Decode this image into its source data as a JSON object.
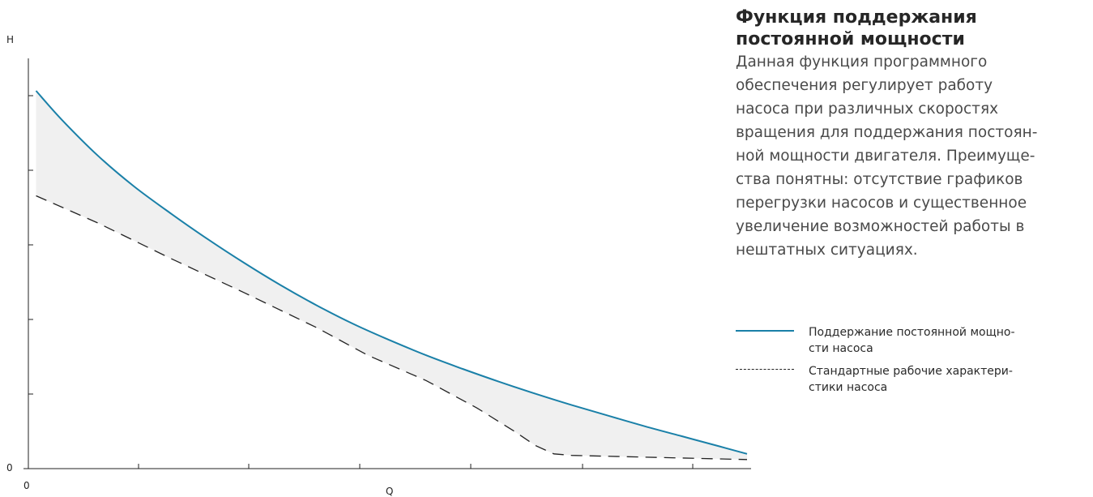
{
  "chart_data": {
    "type": "line",
    "title": "",
    "xlabel": "Q",
    "ylabel": "H",
    "origin_label": "0",
    "x_origin_label": "0",
    "xlim": [
      0,
      100
    ],
    "ylim": [
      0,
      100
    ],
    "grid": false,
    "fill_between": true,
    "fill_color": "#f0f0f0",
    "series": [
      {
        "name": "Поддержание постоянной мощности насоса",
        "style": "solid",
        "color": "#1a80a8",
        "x": [
          1.5,
          5,
          10,
          15,
          20,
          25,
          30,
          35,
          40,
          45,
          50,
          55,
          60,
          65,
          70,
          75,
          80,
          85,
          90,
          95,
          99
        ],
        "y": [
          100,
          92.4,
          82.8,
          74.6,
          67.5,
          60.8,
          54.5,
          48.6,
          43.2,
          38.3,
          34,
          30,
          26.4,
          23,
          19.8,
          16.8,
          14,
          11.2,
          8.6,
          6,
          3.9
        ]
      },
      {
        "name": "Стандартные рабочие характеристики насоса",
        "style": "dashed",
        "color": "#222222",
        "x": [
          1.5,
          10,
          20,
          30,
          40,
          47,
          55,
          62,
          67,
          70,
          72.5,
          75,
          99
        ],
        "y": [
          72.2,
          65,
          55.6,
          46.6,
          37.3,
          30,
          23.3,
          16,
          10,
          6.1,
          3.9,
          3.5,
          2.4
        ]
      }
    ]
  },
  "side": {
    "heading_line1": "Функция поддержания",
    "heading_line2": "постоянной мощности",
    "body_lines": [
      "Данная функция программного",
      "обеспечения регулирует работу",
      "насоса при различных скоростях",
      "вращения для поддержания постоян-",
      "ной мощности двигателя. Преимуще-",
      "ства понятны: отсутствие графиков",
      "перегрузки насосов и существенное",
      "увеличение возможностей работы в",
      "нештатных ситуациях."
    ]
  },
  "legend": {
    "item1_line1": "Поддержание постоянной мощно-",
    "item1_line2": "сти насоса",
    "item2_line1": "Стандартные рабочие характери-",
    "item2_line2": "стики насоса"
  }
}
